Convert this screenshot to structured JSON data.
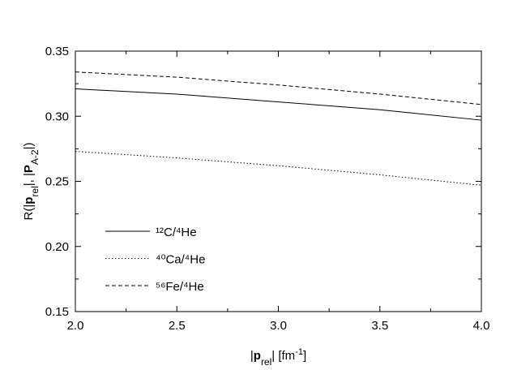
{
  "chart_data": {
    "type": "line",
    "x_label": [
      {
        "text": "|"
      },
      {
        "text": "p",
        "bold": true
      },
      {
        "text": "rel",
        "sub": true
      },
      {
        "text": "| [fm"
      },
      {
        "text": "-1",
        "sup": true
      },
      {
        "text": "]"
      }
    ],
    "y_label": [
      {
        "text": "R(|"
      },
      {
        "text": "p",
        "bold": true
      },
      {
        "text": "rel",
        "sub": true
      },
      {
        "text": "|, |"
      },
      {
        "text": "P",
        "bold": true
      },
      {
        "text": "A-2",
        "sub": true
      },
      {
        "text": "|)"
      }
    ],
    "x": [
      2.0,
      2.5,
      3.0,
      3.5,
      4.0
    ],
    "series": [
      {
        "name": "¹²C/⁴He",
        "color": "#000000",
        "dash": "solid",
        "values": [
          0.321,
          0.317,
          0.311,
          0.305,
          0.297
        ]
      },
      {
        "name": "⁴⁰Ca/⁴He",
        "color": "#000000",
        "dash": "dotted",
        "values": [
          0.273,
          0.268,
          0.262,
          0.255,
          0.247
        ]
      },
      {
        "name": "⁵⁶Fe/⁴He",
        "color": "#000000",
        "dash": "dashed",
        "values": [
          0.334,
          0.33,
          0.324,
          0.317,
          0.309
        ]
      }
    ],
    "xlim": [
      2.0,
      4.0
    ],
    "ylim": [
      0.15,
      0.35
    ],
    "xticks": [
      {
        "value": 2,
        "label": "2.0"
      },
      2.5,
      {
        "value": 3,
        "label": "3.0"
      },
      3.5,
      {
        "value": 4,
        "label": "4.0"
      }
    ],
    "yticks": [
      0.15,
      {
        "value": 0.2,
        "label": "0.20"
      },
      0.25,
      {
        "value": 0.3,
        "label": "0.30"
      },
      0.35
    ],
    "xminorticks": [
      2.25,
      2.75,
      3.25,
      3.75
    ],
    "yminorticks": [
      0.175,
      0.225,
      0.275,
      0.325
    ],
    "grid": false,
    "legend": "lower left"
  }
}
